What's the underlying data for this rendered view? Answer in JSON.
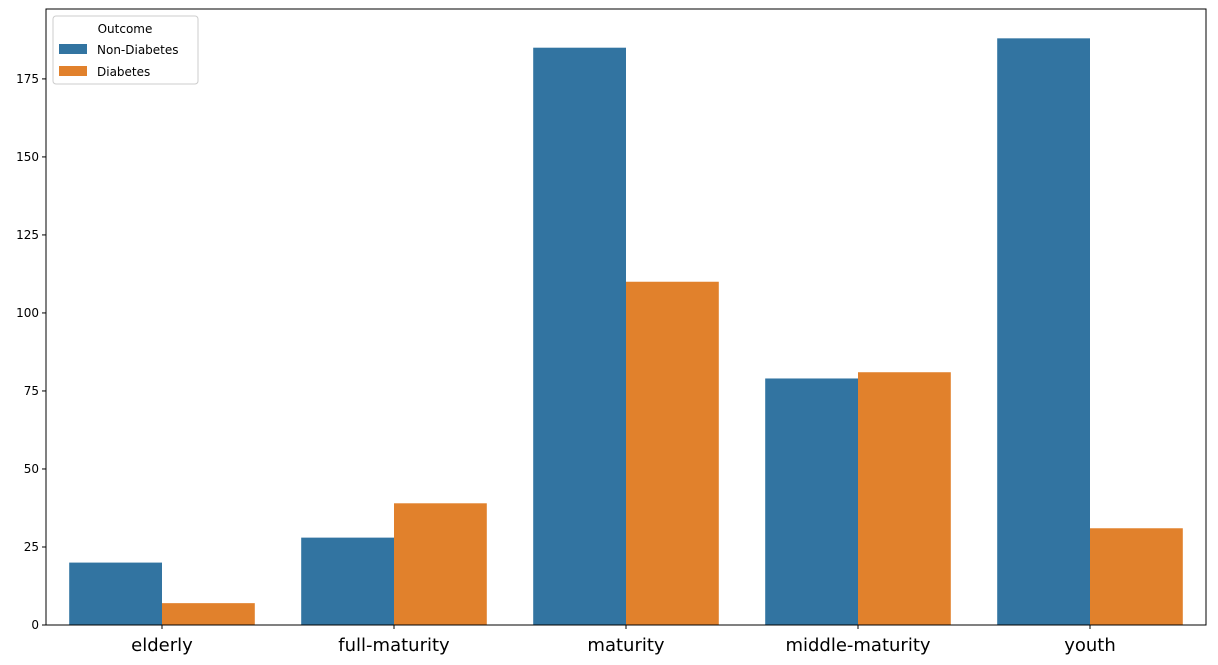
{
  "chart_data": {
    "type": "bar",
    "categories": [
      "elderly",
      "full-maturity",
      "maturity",
      "middle-maturity",
      "youth"
    ],
    "series": [
      {
        "name": "Non-Diabetes",
        "color": "#3274a1",
        "values": [
          20,
          28,
          185,
          79,
          188
        ]
      },
      {
        "name": "Diabetes",
        "color": "#e1812c",
        "values": [
          7,
          39,
          110,
          81,
          31
        ]
      }
    ],
    "title": "",
    "xlabel": "",
    "ylabel": "",
    "ylim": [
      0,
      197.4
    ],
    "yticks": [
      0,
      25,
      50,
      75,
      100,
      125,
      150,
      175
    ],
    "grid": false,
    "legend": {
      "title": "Outcome",
      "position": "top-left"
    }
  }
}
